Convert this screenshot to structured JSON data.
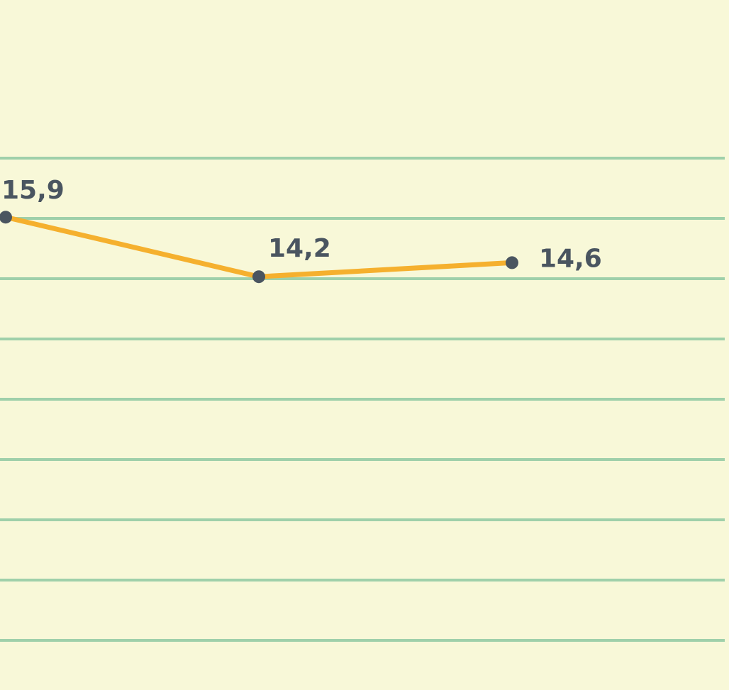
{
  "chart_data": {
    "type": "line",
    "categories": [
      null,
      null,
      null
    ],
    "series": [
      {
        "color": "#f5b02e",
        "values": [
          15.9,
          14.2,
          14.6
        ],
        "value_labels": [
          "15,9",
          "14,2",
          "14,6"
        ]
      }
    ],
    "ylim": [
      2.4,
      22.1
    ]
  }
}
